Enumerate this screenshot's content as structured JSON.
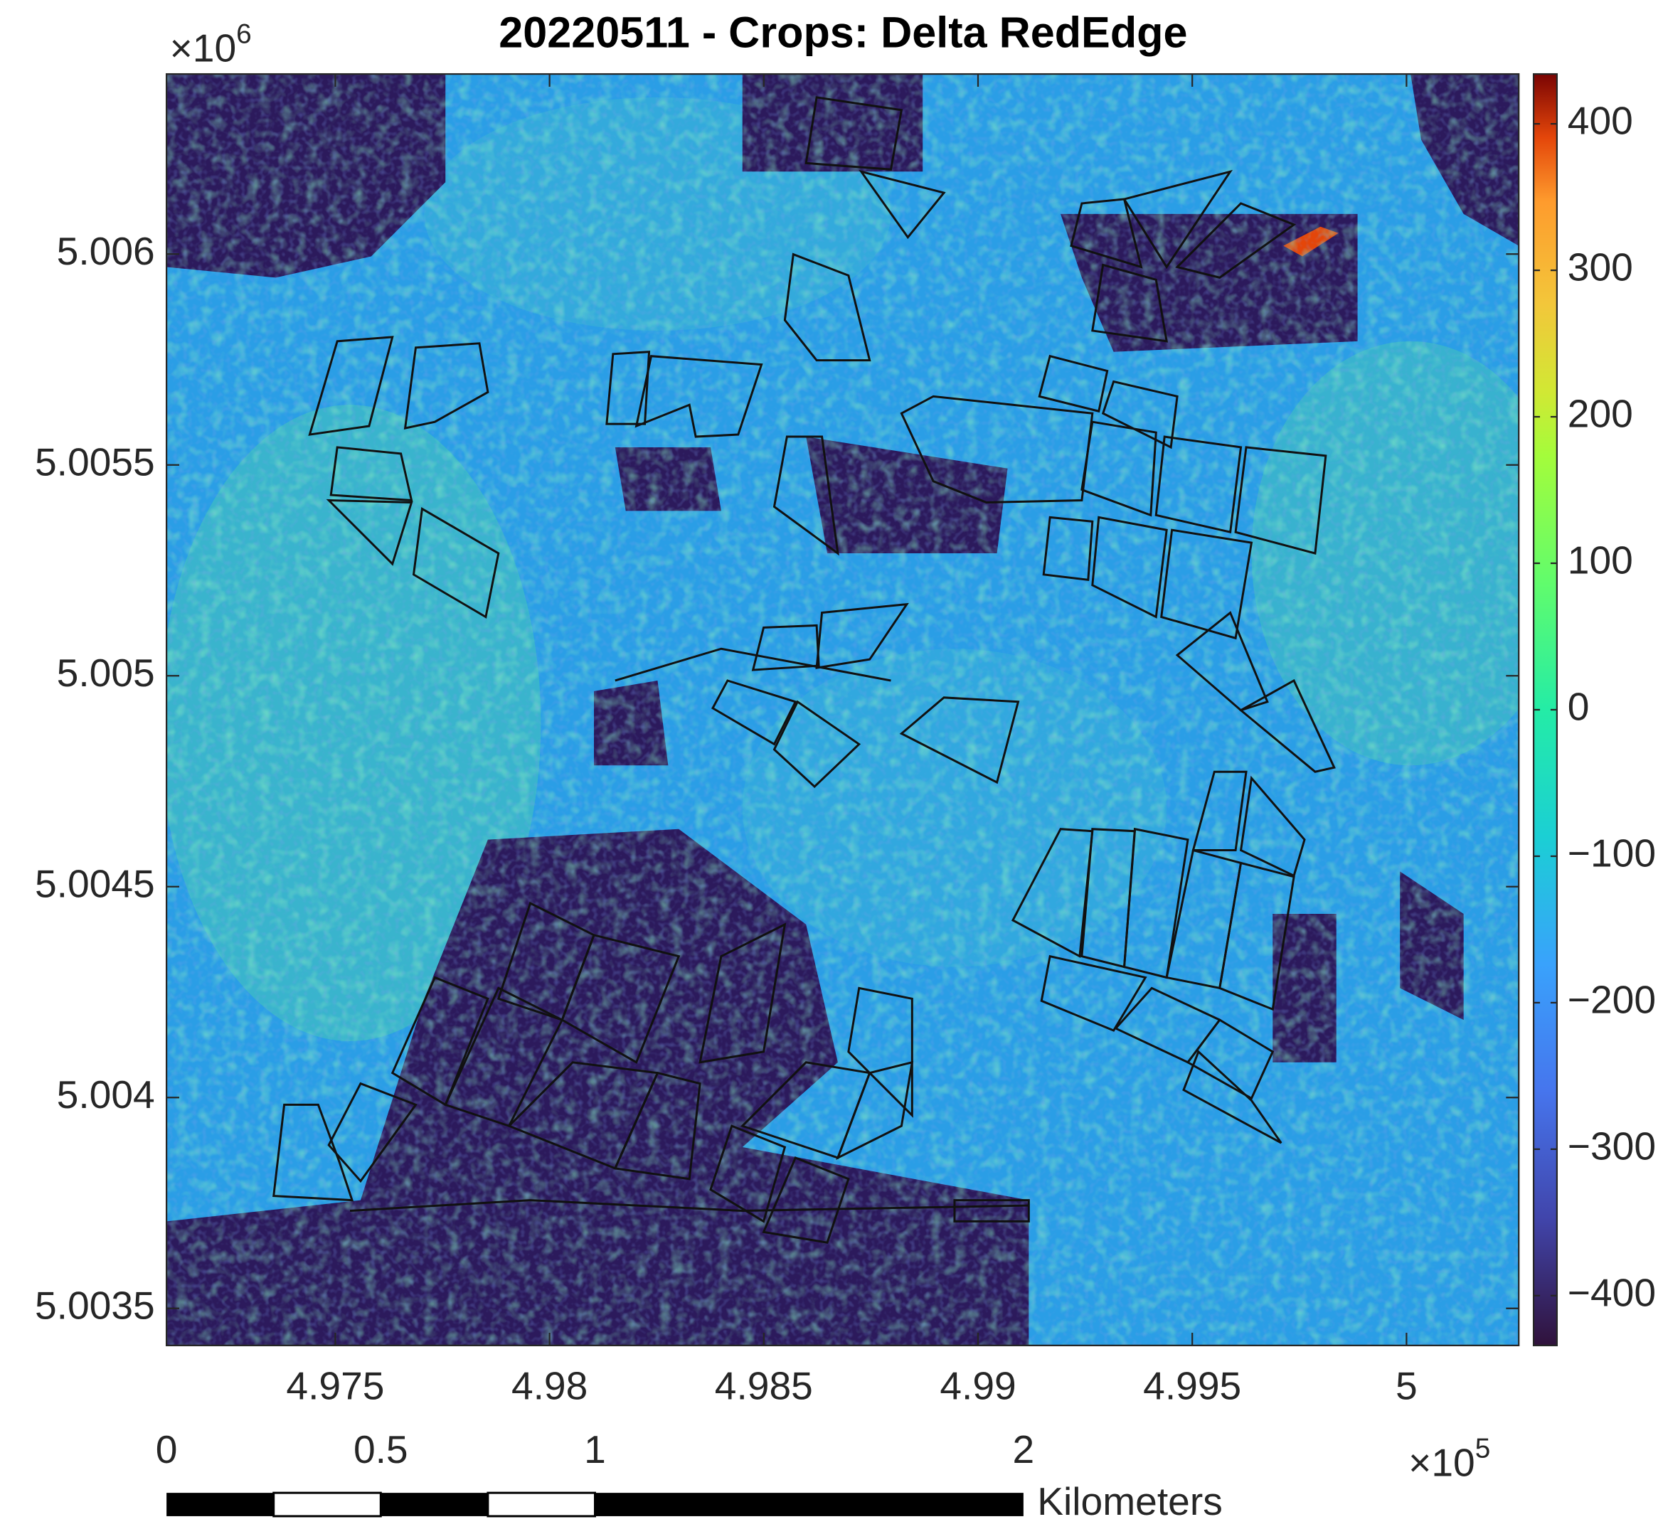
{
  "chart_data": {
    "type": "heatmap",
    "title": "20220511 - Crops: Delta RedEdge",
    "xlim": [
      4.97106,
      5.00262
    ],
    "xticks": [
      4.975,
      4.98,
      4.985,
      4.99,
      4.995,
      5
    ],
    "x_multiplier": {
      "text": "×10",
      "exponent": "5"
    },
    "ylim": [
      5.003412,
      5.006427
    ],
    "yticks": [
      5.0035,
      5.004,
      5.0045,
      5.005,
      5.0055,
      5.006
    ],
    "y_multiplier": {
      "text": "×10",
      "exponent": "6"
    },
    "colormap": "turbo",
    "clim": [
      -434,
      434
    ],
    "cticks": [
      {
        "value": -400,
        "label": "−400"
      },
      {
        "value": -300,
        "label": "−300"
      },
      {
        "value": -200,
        "label": "−200"
      },
      {
        "value": -100,
        "label": "−100"
      },
      0,
      100,
      200,
      300,
      400
    ],
    "scale_bar": {
      "ticks": [
        0,
        0.5,
        1,
        2
      ],
      "unit": "Kilometers"
    }
  }
}
